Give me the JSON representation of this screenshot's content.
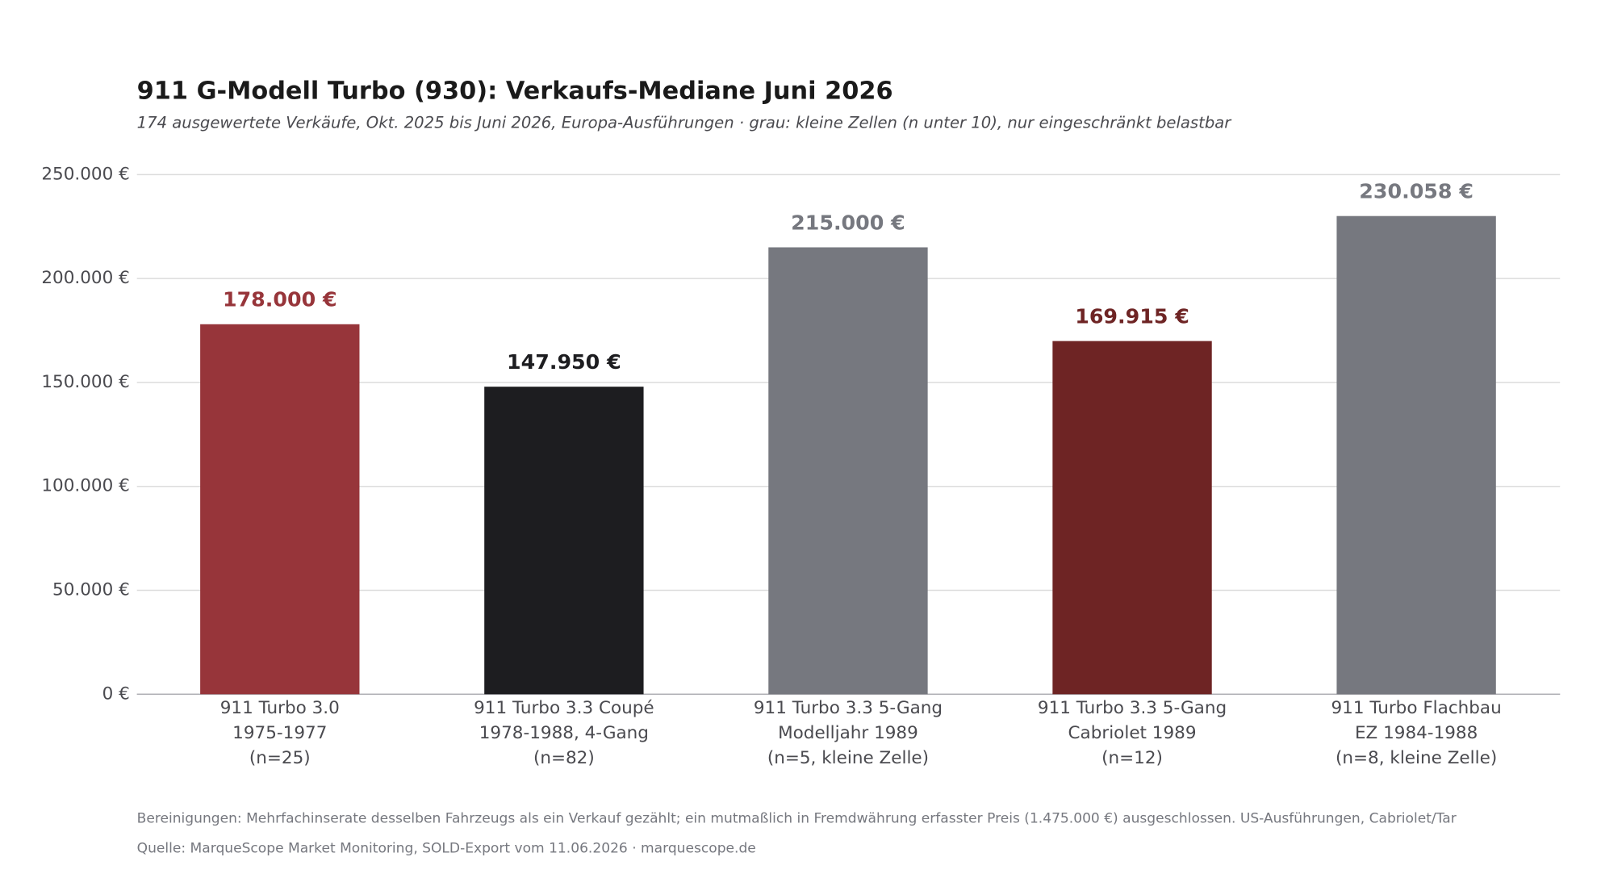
{
  "chart_data": {
    "type": "bar",
    "title": "911 G-Modell Turbo (930): Verkaufs-Mediane Juni 2026",
    "subtitle": "174 ausgewertete Verkäufe, Okt. 2025 bis Juni 2026, Europa-Ausführungen · grau: kleine Zellen (n unter 10), nur eingeschränkt belastbar",
    "categories": [
      [
        "911 Turbo 3.0",
        "1975-1977",
        "(n=25)"
      ],
      [
        "911 Turbo 3.3 Coupé",
        "1978-1988, 4-Gang",
        "(n=82)"
      ],
      [
        "911 Turbo 3.3 5-Gang",
        "Modelljahr 1989",
        "(n=5, kleine Zelle)"
      ],
      [
        "911 Turbo 3.3 5-Gang",
        "Cabriolet 1989",
        "(n=12)"
      ],
      [
        "911 Turbo Flachbau",
        "EZ 1984-1988",
        "(n=8, kleine Zelle)"
      ]
    ],
    "values": [
      178000,
      147950,
      215000,
      169915,
      230058
    ],
    "value_labels": [
      "178.000 €",
      "147.950 €",
      "215.000 €",
      "169.915 €",
      "230.058 €"
    ],
    "colors": [
      "#97353a",
      "#1d1d20",
      "#76787f",
      "#6e2424",
      "#76787f"
    ],
    "ylim": [
      0,
      250000
    ],
    "yticks": [
      {
        "value": 0,
        "label": "0 €"
      },
      {
        "value": 50000,
        "label": "50.000 €"
      },
      {
        "value": 100000,
        "label": "100.000 €"
      },
      {
        "value": 150000,
        "label": "150.000 €"
      },
      {
        "value": 200000,
        "label": "200.000 €"
      },
      {
        "value": 250000,
        "label": "250.000 €"
      }
    ],
    "grid": true,
    "notes": [
      "Bereinigungen: Mehrfachinserate desselben Fahrzeugs als ein Verkauf gezählt; ein mutmaßlich in Fremdwährung erfasster Preis (1.475.000 €) ausgeschlossen. US-Ausführungen, Cabriolet/Tar",
      "Quelle: MarqueScope Market Monitoring, SOLD-Export vom 11.06.2026 · marquescope.de"
    ]
  }
}
